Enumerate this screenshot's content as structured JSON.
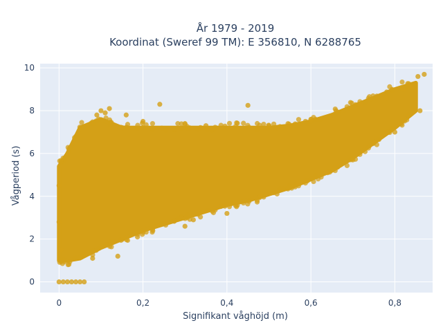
{
  "chart_data": {
    "type": "scatter",
    "title": "År 1979 - 2019",
    "subtitle": "Koordinat (Sweref 99 TM): E 356810, N 6288765",
    "xlabel": "Signifikant våghöjd (m)",
    "ylabel": "Vågperiod (s)",
    "xlim": [
      -0.045,
      0.89
    ],
    "ylim": [
      -0.5,
      10.2
    ],
    "x_ticks": [
      0,
      0.2,
      0.4,
      0.6,
      0.8
    ],
    "x_tick_labels": [
      "0",
      "0,2",
      "0,4",
      "0,6",
      "0,8"
    ],
    "y_ticks": [
      0,
      2,
      4,
      6,
      8,
      10
    ],
    "y_tick_labels": [
      "0",
      "2",
      "4",
      "6",
      "8",
      "10"
    ],
    "grid": true,
    "legend": "none",
    "colors": {
      "marker": "#d4a017",
      "plot_background": "#e5ecf6",
      "grid": "#ffffff",
      "text": "#2a3f5f"
    },
    "envelope": [
      {
        "x": 0.0,
        "y_low": 1.0,
        "y_high": 5.4
      },
      {
        "x": 0.02,
        "y_low": 1.0,
        "y_high": 6.0
      },
      {
        "x": 0.05,
        "y_low": 1.1,
        "y_high": 7.2
      },
      {
        "x": 0.1,
        "y_low": 1.6,
        "y_high": 7.6
      },
      {
        "x": 0.15,
        "y_low": 2.0,
        "y_high": 7.2
      },
      {
        "x": 0.2,
        "y_low": 2.4,
        "y_high": 7.2
      },
      {
        "x": 0.25,
        "y_low": 2.7,
        "y_high": 7.2
      },
      {
        "x": 0.3,
        "y_low": 3.0,
        "y_high": 7.2
      },
      {
        "x": 0.35,
        "y_low": 3.3,
        "y_high": 7.2
      },
      {
        "x": 0.4,
        "y_low": 3.6,
        "y_high": 7.2
      },
      {
        "x": 0.45,
        "y_low": 3.8,
        "y_high": 7.2
      },
      {
        "x": 0.5,
        "y_low": 4.1,
        "y_high": 7.2
      },
      {
        "x": 0.55,
        "y_low": 4.4,
        "y_high": 7.3
      },
      {
        "x": 0.6,
        "y_low": 4.8,
        "y_high": 7.5
      },
      {
        "x": 0.65,
        "y_low": 5.2,
        "y_high": 7.8
      },
      {
        "x": 0.7,
        "y_low": 5.8,
        "y_high": 8.2
      },
      {
        "x": 0.75,
        "y_low": 6.5,
        "y_high": 8.6
      },
      {
        "x": 0.8,
        "y_low": 7.2,
        "y_high": 9.0
      },
      {
        "x": 0.85,
        "y_low": 8.0,
        "y_high": 9.3
      }
    ],
    "series": [
      {
        "points": [
          {
            "x": 0.0,
            "y": 0.0
          },
          {
            "x": 0.01,
            "y": 0.0
          },
          {
            "x": 0.02,
            "y": 0.0
          },
          {
            "x": 0.03,
            "y": 0.0
          },
          {
            "x": 0.04,
            "y": 0.0
          },
          {
            "x": 0.05,
            "y": 0.0
          },
          {
            "x": 0.06,
            "y": 0.0
          },
          {
            "x": 0.0,
            "y": 4.5
          },
          {
            "x": 0.0,
            "y": 2.8
          },
          {
            "x": 0.005,
            "y": 1.5
          },
          {
            "x": 0.09,
            "y": 7.8
          },
          {
            "x": 0.1,
            "y": 8.0
          },
          {
            "x": 0.11,
            "y": 7.9
          },
          {
            "x": 0.16,
            "y": 7.8
          },
          {
            "x": 0.24,
            "y": 8.3
          },
          {
            "x": 0.45,
            "y": 8.25
          },
          {
            "x": 0.3,
            "y": 7.4
          },
          {
            "x": 0.35,
            "y": 7.3
          },
          {
            "x": 0.5,
            "y": 7.3
          },
          {
            "x": 0.6,
            "y": 7.6
          },
          {
            "x": 0.66,
            "y": 8.0
          },
          {
            "x": 0.72,
            "y": 8.3
          },
          {
            "x": 0.78,
            "y": 8.6
          },
          {
            "x": 0.82,
            "y": 9.0
          },
          {
            "x": 0.84,
            "y": 9.1
          },
          {
            "x": 0.855,
            "y": 9.6
          },
          {
            "x": 0.87,
            "y": 9.7
          },
          {
            "x": 0.3,
            "y": 2.6
          },
          {
            "x": 0.32,
            "y": 2.9
          },
          {
            "x": 0.4,
            "y": 3.2
          },
          {
            "x": 0.48,
            "y": 4.0
          },
          {
            "x": 0.57,
            "y": 4.6
          },
          {
            "x": 0.64,
            "y": 5.1
          },
          {
            "x": 0.7,
            "y": 5.7
          },
          {
            "x": 0.75,
            "y": 6.5
          },
          {
            "x": 0.8,
            "y": 7.0
          },
          {
            "x": 0.86,
            "y": 8.0
          },
          {
            "x": 0.14,
            "y": 1.2
          },
          {
            "x": 0.08,
            "y": 1.1
          },
          {
            "x": 0.12,
            "y": 8.1
          },
          {
            "x": 0.2,
            "y": 7.5
          }
        ]
      }
    ]
  }
}
